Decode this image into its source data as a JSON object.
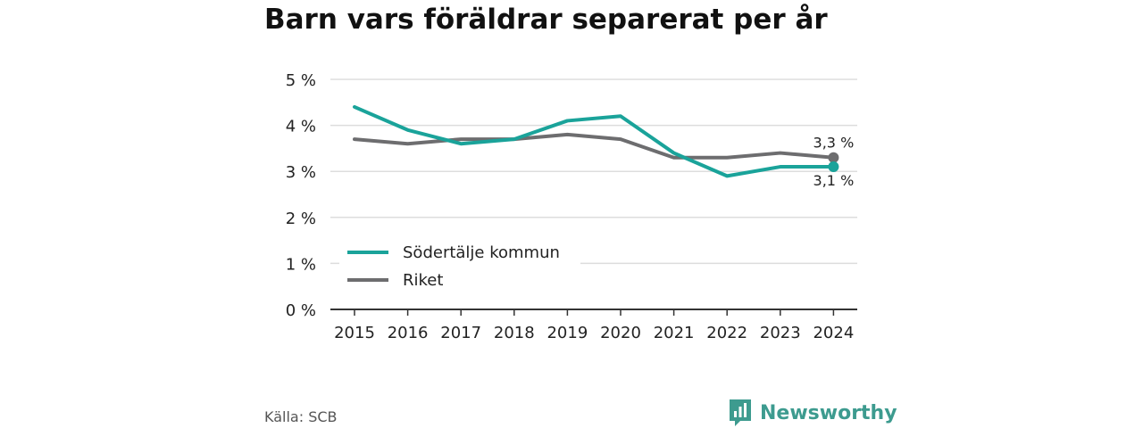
{
  "colors": {
    "sodertalje": "#1aa39a",
    "riket": "#6d6d6f",
    "grid": "#dddddd",
    "axis": "#333333",
    "brand": "#3d9b8f"
  },
  "chart_data": {
    "type": "line",
    "title": "Barn vars föräldrar separerat per år",
    "x": [
      "2015",
      "2016",
      "2017",
      "2018",
      "2019",
      "2020",
      "2021",
      "2022",
      "2023",
      "2024"
    ],
    "ylim": [
      0,
      5
    ],
    "yticks": [
      0,
      1,
      2,
      3,
      4,
      5
    ],
    "ytick_labels": [
      "0 %",
      "1 %",
      "2 %",
      "3 %",
      "4 %",
      "5 %"
    ],
    "grid": true,
    "legend_placement": "bottom-left",
    "series": [
      {
        "name": "Södertälje kommun",
        "color_key": "sodertalje",
        "values": [
          4.4,
          3.9,
          3.6,
          3.7,
          4.1,
          4.2,
          3.4,
          2.9,
          3.1,
          3.1
        ],
        "end_label": "3,1 %"
      },
      {
        "name": "Riket",
        "color_key": "riket",
        "values": [
          3.7,
          3.6,
          3.7,
          3.7,
          3.8,
          3.7,
          3.3,
          3.3,
          3.4,
          3.3
        ],
        "end_label": "3,3 %"
      }
    ]
  },
  "footer": {
    "source": "Källa: SCB",
    "brand_name": "Newsworthy",
    "brand_icon": "bar-chart-speech-bubble-icon"
  }
}
